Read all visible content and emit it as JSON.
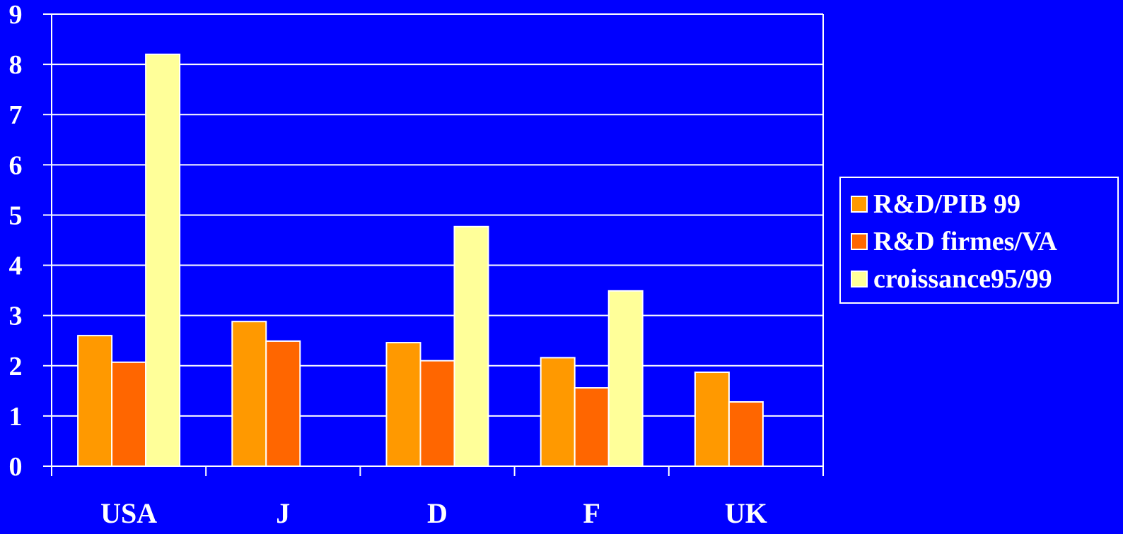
{
  "colors": {
    "background": "#0000FF",
    "gridline": "#FFFFFF",
    "text": "#FFFFFF"
  },
  "chart_data": {
    "type": "bar",
    "categories": [
      "USA",
      "J",
      "D",
      "F",
      "UK"
    ],
    "series": [
      {
        "name": "R&D/PIB 99",
        "color": "#FF9900",
        "values": [
          2.6,
          2.88,
          2.46,
          2.16,
          1.87
        ]
      },
      {
        "name": "R&D firmes/VA",
        "color": "#FF6600",
        "values": [
          2.07,
          2.49,
          2.1,
          1.56,
          1.28
        ]
      },
      {
        "name": "croissance95/99",
        "color": "#FFFF99",
        "values": [
          8.2,
          null,
          4.77,
          3.49,
          null
        ]
      }
    ],
    "yticks": [
      "0",
      "1",
      "2",
      "3",
      "4",
      "5",
      "6",
      "7",
      "8",
      "9"
    ],
    "ylim": [
      0,
      9
    ],
    "grid": true,
    "legend_position": "right"
  }
}
